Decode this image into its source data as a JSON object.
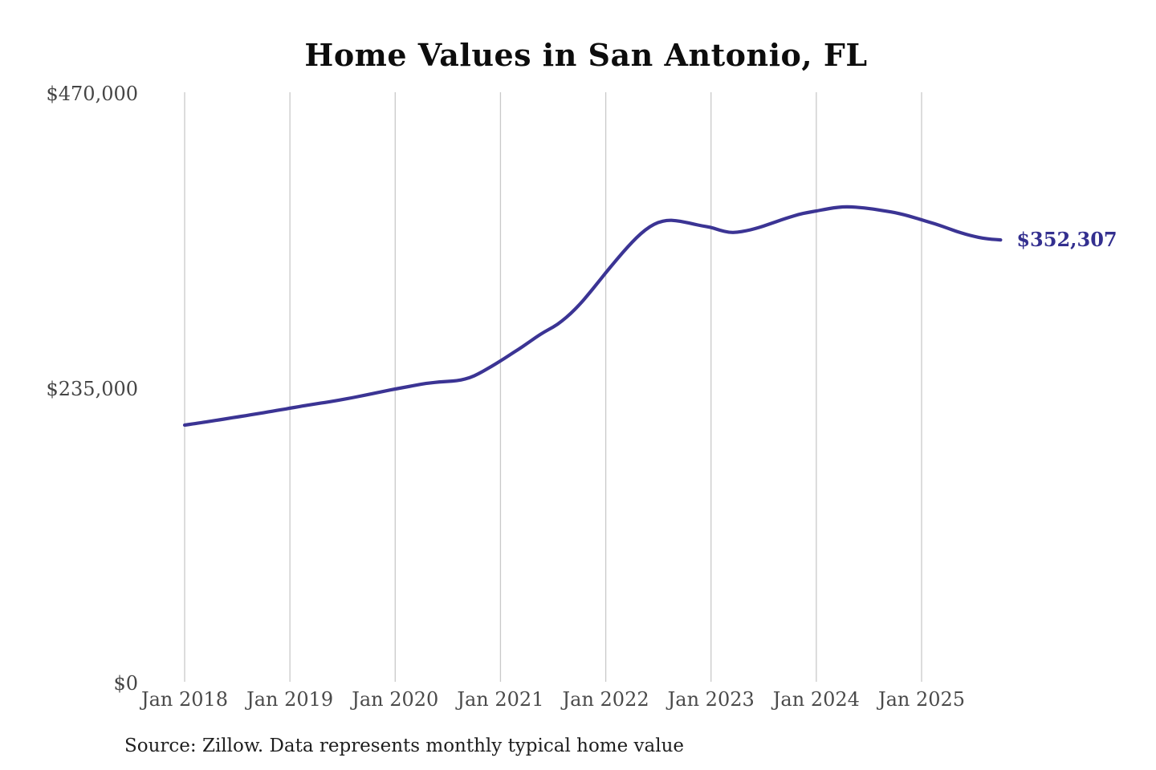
{
  "chart": {
    "title": "Home Values in San Antonio, FL",
    "annotation": {
      "label": "$352,307"
    },
    "source": "Source: Zillow. Data represents monthly typical home value",
    "colors": {
      "line": "#3b3494",
      "annotation_text": "#332f8f",
      "gridline": "#c9c9c9",
      "axis_text": "#4a4a4a",
      "title_text": "#0d0d0d",
      "source_text": "#1e1e1e",
      "background": "#ffffff"
    }
  },
  "chart_data": {
    "type": "line",
    "title": "Home Values in San Antonio, FL",
    "xlabel": "",
    "ylabel": "",
    "x_start": "Jan 2018",
    "x_end": "Oct 2025",
    "frequency": "monthly",
    "x_tick_labels": [
      "Jan 2018",
      "Jan 2019",
      "Jan 2020",
      "Jan 2021",
      "Jan 2022",
      "Jan 2023",
      "Jan 2024",
      "Jan 2025"
    ],
    "x_tick_month_indices": [
      0,
      12,
      24,
      36,
      48,
      60,
      72,
      84
    ],
    "y_ticks": [
      {
        "value": 0,
        "label": "$0"
      },
      {
        "value": 235000,
        "label": "$235,000"
      },
      {
        "value": 470000,
        "label": "$470,000"
      }
    ],
    "ylim": [
      0,
      470000
    ],
    "grid": "vertical-only",
    "legend": "none",
    "last_value": 352307,
    "last_value_label": "$352,307",
    "series": [
      {
        "name": "Typical home value",
        "unit": "USD",
        "values": [
          204600,
          205600,
          206700,
          207800,
          208900,
          210000,
          211100,
          212200,
          213400,
          214500,
          215700,
          216900,
          218100,
          219300,
          220500,
          221600,
          222700,
          223800,
          225000,
          226300,
          227700,
          229100,
          230600,
          232000,
          233400,
          234700,
          236000,
          237300,
          238300,
          239000,
          239500,
          239900,
          241300,
          243700,
          247500,
          251500,
          255800,
          260300,
          264800,
          269500,
          274400,
          279000,
          282700,
          287500,
          293500,
          300600,
          308700,
          317300,
          326100,
          334500,
          342800,
          350500,
          357400,
          362900,
          366400,
          368000,
          367700,
          366500,
          364900,
          363400,
          362300,
          360000,
          358200,
          358300,
          359500,
          361200,
          363300,
          365800,
          368200,
          370500,
          372600,
          374100,
          375300,
          376700,
          377900,
          378600,
          378600,
          378100,
          377300,
          376300,
          375200,
          374000,
          372400,
          370400,
          368300,
          366200,
          364000,
          361500,
          359000,
          356800,
          355000,
          353600,
          352700,
          352307
        ]
      }
    ]
  }
}
